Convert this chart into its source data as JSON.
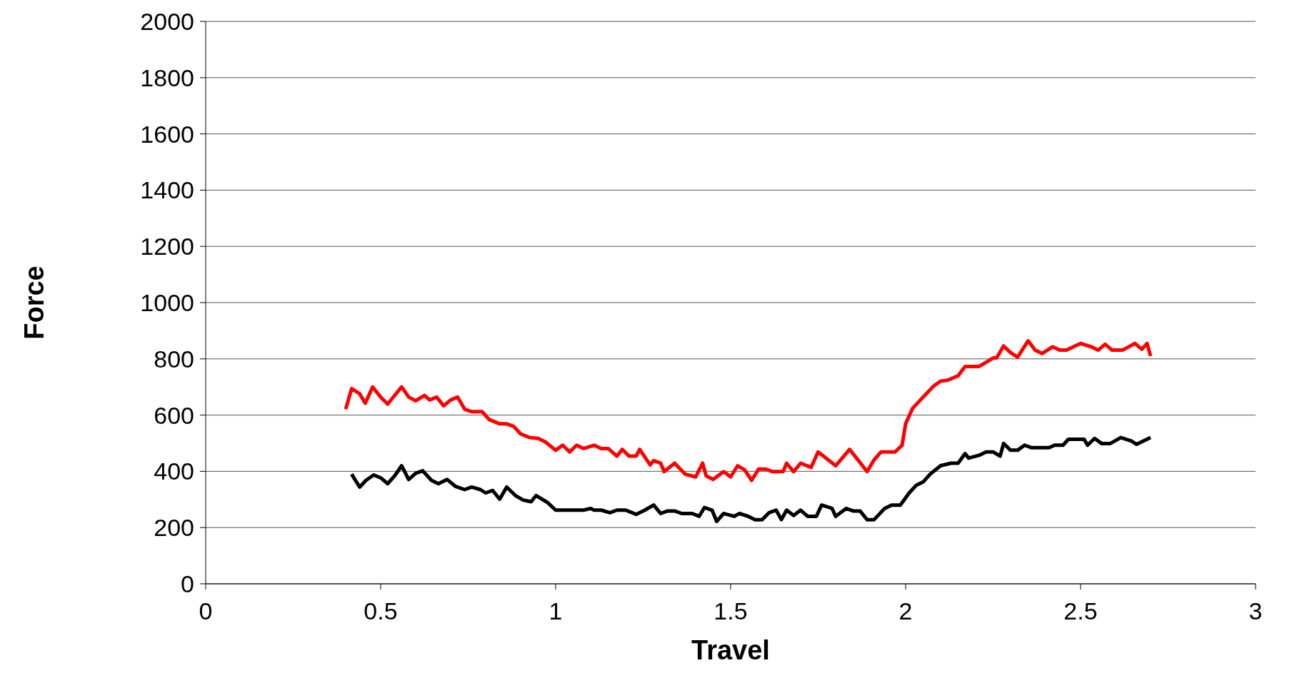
{
  "chart_data": {
    "type": "line",
    "xlabel": "Travel",
    "ylabel": "Force",
    "xlim": [
      0,
      3
    ],
    "xticks": [
      0,
      0.5,
      1,
      1.5,
      2,
      2.5,
      3
    ],
    "ylim": [
      0,
      2000
    ],
    "yticks": [
      0,
      200,
      400,
      600,
      800,
      1000,
      1200,
      1400,
      1600,
      1800,
      2000
    ],
    "grid": "y",
    "marker": "none",
    "line_style": "solid",
    "series": [
      {
        "color": "#ff0000",
        "x": [
          0.4,
          0.417,
          0.44,
          0.456,
          0.477,
          0.5,
          0.52,
          0.54,
          0.56,
          0.58,
          0.6,
          0.625,
          0.64,
          0.66,
          0.68,
          0.7,
          0.72,
          0.74,
          0.76,
          0.79,
          0.81,
          0.84,
          0.86,
          0.88,
          0.9,
          0.926,
          0.95,
          0.97,
          1.0,
          1.02,
          1.04,
          1.06,
          1.08,
          1.11,
          1.13,
          1.15,
          1.175,
          1.19,
          1.21,
          1.23,
          1.24,
          1.27,
          1.28,
          1.3,
          1.31,
          1.34,
          1.37,
          1.4,
          1.42,
          1.43,
          1.45,
          1.48,
          1.5,
          1.52,
          1.54,
          1.56,
          1.58,
          1.6,
          1.62,
          1.65,
          1.66,
          1.68,
          1.7,
          1.73,
          1.75,
          1.8,
          1.84,
          1.89,
          1.91,
          1.93,
          1.97,
          1.99,
          2.0,
          2.02,
          2.05,
          2.08,
          2.1,
          2.12,
          2.15,
          2.17,
          2.21,
          2.23,
          2.25,
          2.26,
          2.28,
          2.3,
          2.32,
          2.35,
          2.37,
          2.39,
          2.42,
          2.44,
          2.46,
          2.48,
          2.5,
          2.53,
          2.55,
          2.57,
          2.59,
          2.62,
          2.655,
          2.675,
          2.69,
          2.7
        ],
        "values": [
          621,
          694,
          676,
          642,
          700,
          664,
          639,
          670,
          700,
          664,
          651,
          670,
          654,
          664,
          633,
          654,
          664,
          621,
          612,
          612,
          584,
          569,
          569,
          560,
          533,
          520,
          517,
          505,
          475,
          493,
          469,
          493,
          481,
          493,
          481,
          481,
          454,
          478,
          454,
          454,
          478,
          423,
          438,
          429,
          399,
          429,
          390,
          380,
          429,
          384,
          371,
          399,
          380,
          420,
          405,
          368,
          408,
          408,
          399,
          399,
          429,
          399,
          429,
          414,
          469,
          420,
          478,
          399,
          441,
          469,
          469,
          493,
          569,
          624,
          664,
          703,
          721,
          724,
          740,
          773,
          773,
          788,
          803,
          803,
          846,
          822,
          806,
          864,
          831,
          819,
          843,
          831,
          831,
          843,
          855,
          843,
          831,
          852,
          831,
          831,
          855,
          834,
          855,
          810
        ]
      },
      {
        "color": "#000000",
        "x": [
          0.417,
          0.44,
          0.458,
          0.48,
          0.5,
          0.52,
          0.54,
          0.56,
          0.58,
          0.6,
          0.62,
          0.645,
          0.665,
          0.69,
          0.713,
          0.74,
          0.76,
          0.785,
          0.8,
          0.82,
          0.84,
          0.86,
          0.885,
          0.907,
          0.93,
          0.944,
          0.977,
          1.0,
          1.03,
          1.08,
          1.1,
          1.11,
          1.13,
          1.155,
          1.175,
          1.2,
          1.23,
          1.255,
          1.28,
          1.3,
          1.32,
          1.34,
          1.36,
          1.39,
          1.41,
          1.425,
          1.447,
          1.46,
          1.48,
          1.51,
          1.525,
          1.55,
          1.57,
          1.59,
          1.61,
          1.63,
          1.645,
          1.66,
          1.68,
          1.7,
          1.72,
          1.745,
          1.76,
          1.79,
          1.8,
          1.83,
          1.85,
          1.87,
          1.89,
          1.91,
          1.94,
          1.96,
          1.985,
          2.01,
          2.03,
          2.05,
          2.07,
          2.1,
          2.13,
          2.15,
          2.17,
          2.18,
          2.21,
          2.23,
          2.25,
          2.27,
          2.28,
          2.3,
          2.32,
          2.34,
          2.36,
          2.39,
          2.41,
          2.426,
          2.45,
          2.465,
          2.49,
          2.51,
          2.52,
          2.54,
          2.56,
          2.585,
          2.615,
          2.645,
          2.66,
          2.68,
          2.7
        ],
        "values": [
          390,
          344,
          368,
          387,
          377,
          356,
          384,
          420,
          371,
          393,
          402,
          368,
          356,
          371,
          347,
          335,
          344,
          335,
          323,
          332,
          301,
          344,
          314,
          298,
          292,
          314,
          289,
          262,
          262,
          262,
          268,
          262,
          262,
          253,
          262,
          262,
          247,
          262,
          280,
          250,
          259,
          259,
          250,
          250,
          240,
          271,
          262,
          222,
          250,
          240,
          250,
          240,
          228,
          228,
          253,
          262,
          228,
          262,
          243,
          262,
          240,
          240,
          280,
          268,
          240,
          268,
          259,
          259,
          228,
          228,
          268,
          280,
          280,
          323,
          350,
          362,
          390,
          420,
          429,
          429,
          463,
          447,
          457,
          469,
          469,
          454,
          499,
          475,
          475,
          493,
          484,
          484,
          484,
          493,
          493,
          514,
          514,
          514,
          493,
          517,
          499,
          499,
          520,
          508,
          496,
          508,
          520
        ]
      }
    ]
  }
}
